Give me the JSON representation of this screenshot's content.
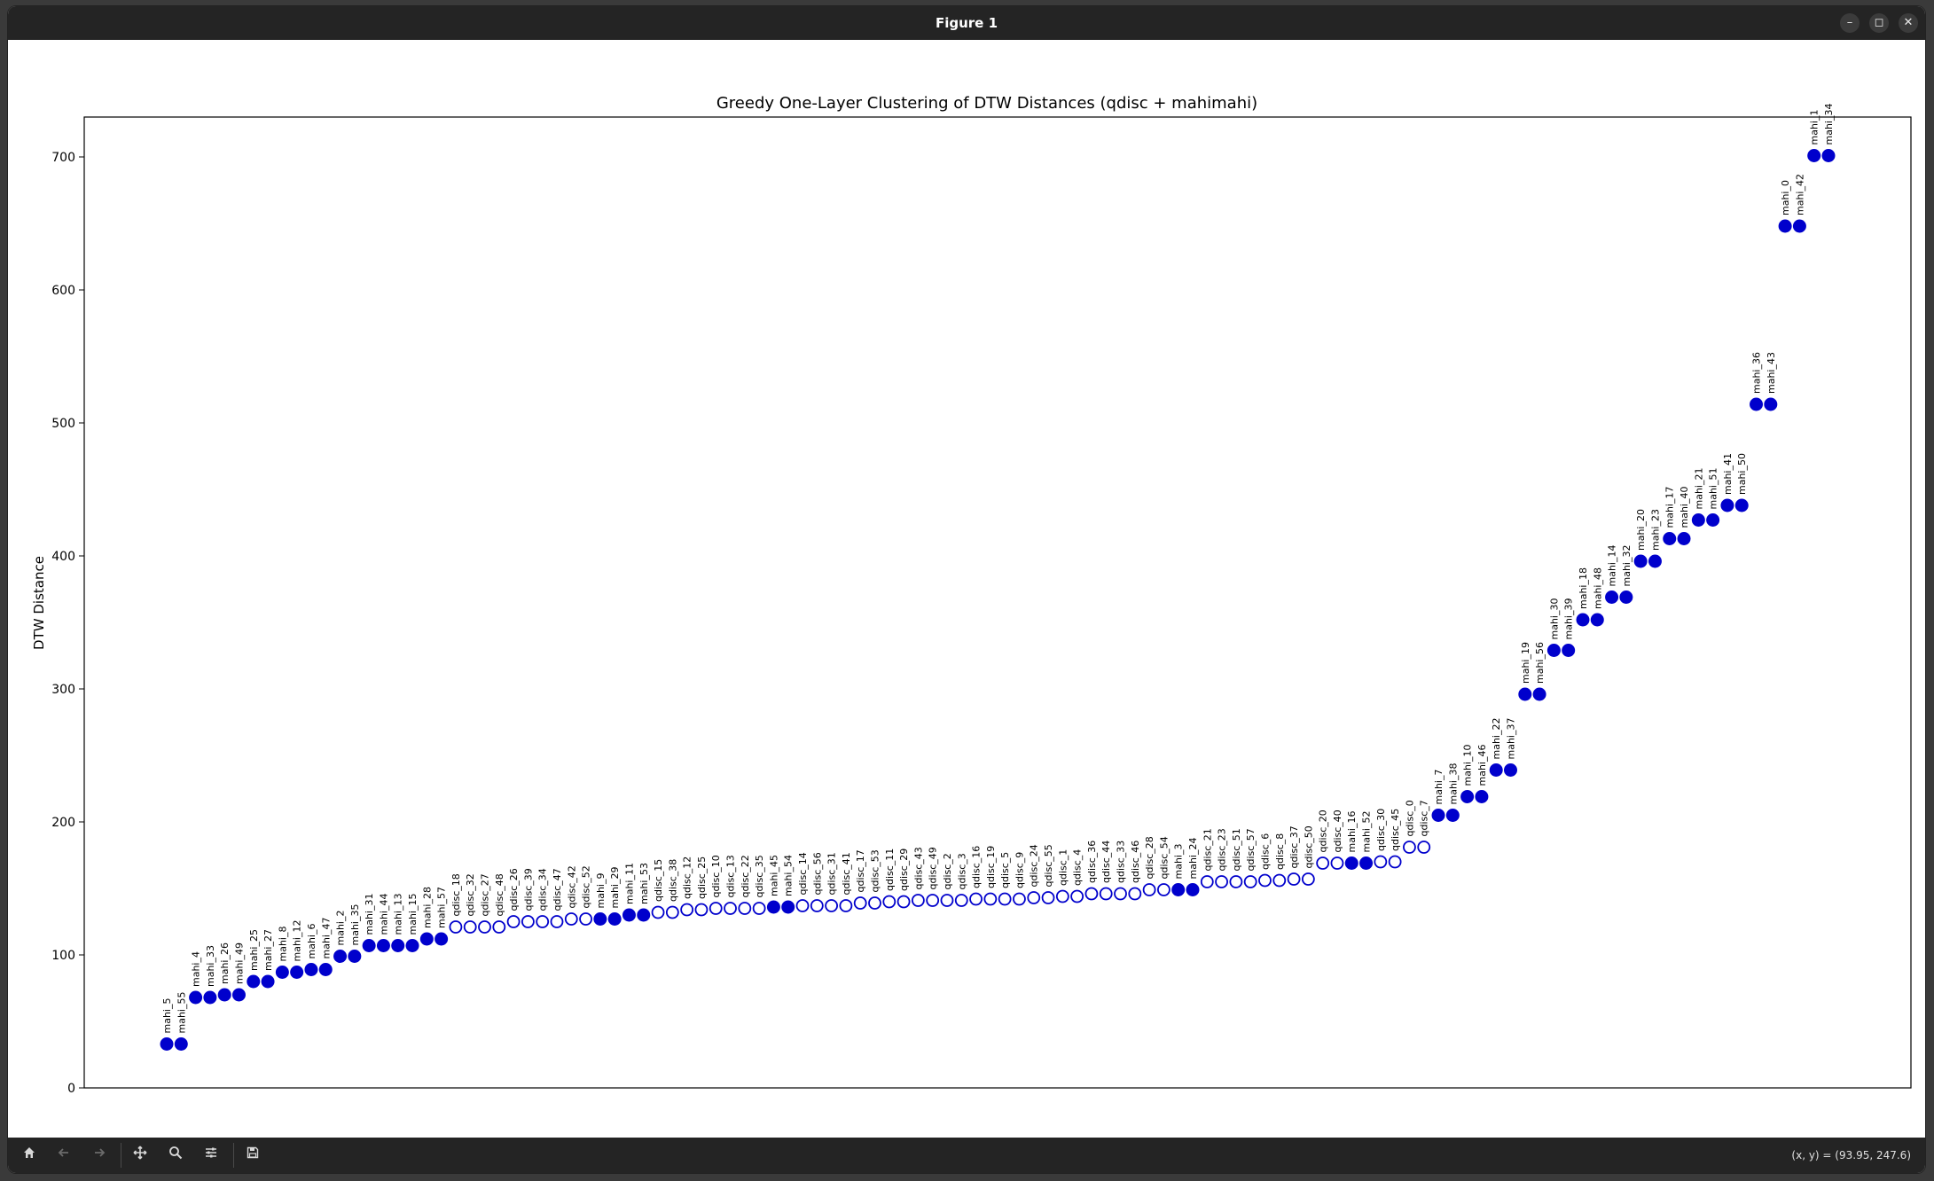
{
  "window": {
    "title": "Figure 1",
    "controls": {
      "minimize": "–",
      "maximize": "◻",
      "close": "✕"
    }
  },
  "toolbar": {
    "buttons": [
      "home",
      "back",
      "forward",
      "pan",
      "zoom",
      "configure",
      "save"
    ],
    "coords": "(x, y) = (93.95, 247.6)"
  },
  "chart_data": {
    "type": "scatter",
    "title": "Greedy One-Layer Clustering of DTW Distances (qdisc + mahimahi)",
    "xlabel": "",
    "ylabel": "DTW Distance",
    "ylim": [
      0,
      730
    ],
    "yticks": [
      0,
      100,
      200,
      300,
      400,
      500,
      600,
      700
    ],
    "xticks_visible": false,
    "grid": false,
    "legend": "none",
    "colors": {
      "mahi": "#0000cc",
      "qdisc_edge": "#0000cc",
      "qdisc_face": "#ffffff"
    },
    "points": [
      {
        "label": "mahi_5",
        "y": 33.0,
        "kind": "mahi"
      },
      {
        "label": "mahi_55",
        "y": 33.0,
        "kind": "mahi"
      },
      {
        "label": "mahi_4",
        "y": 68.0,
        "kind": "mahi"
      },
      {
        "label": "mahi_33",
        "y": 68.0,
        "kind": "mahi"
      },
      {
        "label": "mahi_26",
        "y": 70.0,
        "kind": "mahi"
      },
      {
        "label": "mahi_49",
        "y": 70.0,
        "kind": "mahi"
      },
      {
        "label": "mahi_25",
        "y": 80.0,
        "kind": "mahi"
      },
      {
        "label": "mahi_27",
        "y": 80.0,
        "kind": "mahi"
      },
      {
        "label": "mahi_8",
        "y": 87.0,
        "kind": "mahi"
      },
      {
        "label": "mahi_12",
        "y": 87.0,
        "kind": "mahi"
      },
      {
        "label": "mahi_6",
        "y": 89.0,
        "kind": "mahi"
      },
      {
        "label": "mahi_47",
        "y": 89.0,
        "kind": "mahi"
      },
      {
        "label": "mahi_2",
        "y": 99.0,
        "kind": "mahi"
      },
      {
        "label": "mahi_35",
        "y": 99.0,
        "kind": "mahi"
      },
      {
        "label": "mahi_31",
        "y": 107.0,
        "kind": "mahi"
      },
      {
        "label": "mahi_44",
        "y": 107.0,
        "kind": "mahi"
      },
      {
        "label": "mahi_13",
        "y": 107.0,
        "kind": "mahi"
      },
      {
        "label": "mahi_15",
        "y": 107.0,
        "kind": "mahi"
      },
      {
        "label": "mahi_28",
        "y": 112.0,
        "kind": "mahi"
      },
      {
        "label": "mahi_57",
        "y": 112.0,
        "kind": "mahi"
      },
      {
        "label": "qdisc_18",
        "y": 121.0,
        "kind": "qdisc"
      },
      {
        "label": "qdisc_32",
        "y": 121.0,
        "kind": "qdisc"
      },
      {
        "label": "qdisc_27",
        "y": 121.0,
        "kind": "qdisc"
      },
      {
        "label": "qdisc_48",
        "y": 121.0,
        "kind": "qdisc"
      },
      {
        "label": "qdisc_26",
        "y": 125.0,
        "kind": "qdisc"
      },
      {
        "label": "qdisc_39",
        "y": 125.0,
        "kind": "qdisc"
      },
      {
        "label": "qdisc_34",
        "y": 125.0,
        "kind": "qdisc"
      },
      {
        "label": "qdisc_47",
        "y": 125.0,
        "kind": "qdisc"
      },
      {
        "label": "qdisc_42",
        "y": 127.0,
        "kind": "qdisc"
      },
      {
        "label": "qdisc_52",
        "y": 127.0,
        "kind": "qdisc"
      },
      {
        "label": "mahi_9",
        "y": 127.0,
        "kind": "mahi"
      },
      {
        "label": "mahi_29",
        "y": 127.0,
        "kind": "mahi"
      },
      {
        "label": "mahi_11",
        "y": 130.0,
        "kind": "mahi"
      },
      {
        "label": "mahi_53",
        "y": 130.0,
        "kind": "mahi"
      },
      {
        "label": "qdisc_15",
        "y": 132.0,
        "kind": "qdisc"
      },
      {
        "label": "qdisc_38",
        "y": 132.0,
        "kind": "qdisc"
      },
      {
        "label": "qdisc_12",
        "y": 134.0,
        "kind": "qdisc"
      },
      {
        "label": "qdisc_25",
        "y": 134.0,
        "kind": "qdisc"
      },
      {
        "label": "qdisc_10",
        "y": 135.0,
        "kind": "qdisc"
      },
      {
        "label": "qdisc_13",
        "y": 135.0,
        "kind": "qdisc"
      },
      {
        "label": "qdisc_22",
        "y": 135.0,
        "kind": "qdisc"
      },
      {
        "label": "qdisc_35",
        "y": 135.0,
        "kind": "qdisc"
      },
      {
        "label": "mahi_45",
        "y": 136.0,
        "kind": "mahi"
      },
      {
        "label": "mahi_54",
        "y": 136.0,
        "kind": "mahi"
      },
      {
        "label": "qdisc_14",
        "y": 137.0,
        "kind": "qdisc"
      },
      {
        "label": "qdisc_56",
        "y": 137.0,
        "kind": "qdisc"
      },
      {
        "label": "qdisc_31",
        "y": 137.0,
        "kind": "qdisc"
      },
      {
        "label": "qdisc_41",
        "y": 137.0,
        "kind": "qdisc"
      },
      {
        "label": "qdisc_17",
        "y": 139.0,
        "kind": "qdisc"
      },
      {
        "label": "qdisc_53",
        "y": 139.0,
        "kind": "qdisc"
      },
      {
        "label": "qdisc_11",
        "y": 140.0,
        "kind": "qdisc"
      },
      {
        "label": "qdisc_29",
        "y": 140.0,
        "kind": "qdisc"
      },
      {
        "label": "qdisc_43",
        "y": 141.0,
        "kind": "qdisc"
      },
      {
        "label": "qdisc_49",
        "y": 141.0,
        "kind": "qdisc"
      },
      {
        "label": "qdisc_2",
        "y": 141.0,
        "kind": "qdisc"
      },
      {
        "label": "qdisc_3",
        "y": 141.0,
        "kind": "qdisc"
      },
      {
        "label": "qdisc_16",
        "y": 142.0,
        "kind": "qdisc"
      },
      {
        "label": "qdisc_19",
        "y": 142.0,
        "kind": "qdisc"
      },
      {
        "label": "qdisc_5",
        "y": 142.0,
        "kind": "qdisc"
      },
      {
        "label": "qdisc_9",
        "y": 142.0,
        "kind": "qdisc"
      },
      {
        "label": "qdisc_24",
        "y": 143.0,
        "kind": "qdisc"
      },
      {
        "label": "qdisc_55",
        "y": 143.0,
        "kind": "qdisc"
      },
      {
        "label": "qdisc_1",
        "y": 144.0,
        "kind": "qdisc"
      },
      {
        "label": "qdisc_4",
        "y": 144.0,
        "kind": "qdisc"
      },
      {
        "label": "qdisc_36",
        "y": 146.0,
        "kind": "qdisc"
      },
      {
        "label": "qdisc_44",
        "y": 146.0,
        "kind": "qdisc"
      },
      {
        "label": "qdisc_33",
        "y": 146.0,
        "kind": "qdisc"
      },
      {
        "label": "qdisc_46",
        "y": 146.0,
        "kind": "qdisc"
      },
      {
        "label": "qdisc_28",
        "y": 149.0,
        "kind": "qdisc"
      },
      {
        "label": "qdisc_54",
        "y": 149.0,
        "kind": "qdisc"
      },
      {
        "label": "mahi_3",
        "y": 149.0,
        "kind": "mahi"
      },
      {
        "label": "mahi_24",
        "y": 149.0,
        "kind": "mahi"
      },
      {
        "label": "qdisc_21",
        "y": 155.0,
        "kind": "qdisc"
      },
      {
        "label": "qdisc_23",
        "y": 155.0,
        "kind": "qdisc"
      },
      {
        "label": "qdisc_51",
        "y": 155.0,
        "kind": "qdisc"
      },
      {
        "label": "qdisc_57",
        "y": 155.0,
        "kind": "qdisc"
      },
      {
        "label": "qdisc_6",
        "y": 156.0,
        "kind": "qdisc"
      },
      {
        "label": "qdisc_8",
        "y": 156.0,
        "kind": "qdisc"
      },
      {
        "label": "qdisc_37",
        "y": 157.0,
        "kind": "qdisc"
      },
      {
        "label": "qdisc_50",
        "y": 157.0,
        "kind": "qdisc"
      },
      {
        "label": "qdisc_20",
        "y": 169.0,
        "kind": "qdisc"
      },
      {
        "label": "qdisc_40",
        "y": 169.0,
        "kind": "qdisc"
      },
      {
        "label": "mahi_16",
        "y": 169.0,
        "kind": "mahi"
      },
      {
        "label": "mahi_52",
        "y": 169.0,
        "kind": "mahi"
      },
      {
        "label": "qdisc_30",
        "y": 170.0,
        "kind": "qdisc"
      },
      {
        "label": "qdisc_45",
        "y": 170.0,
        "kind": "qdisc"
      },
      {
        "label": "qdisc_0",
        "y": 181.0,
        "kind": "qdisc"
      },
      {
        "label": "qdisc_7",
        "y": 181.0,
        "kind": "qdisc"
      },
      {
        "label": "mahi_7",
        "y": 205.0,
        "kind": "mahi"
      },
      {
        "label": "mahi_38",
        "y": 205.0,
        "kind": "mahi"
      },
      {
        "label": "mahi_10",
        "y": 219.0,
        "kind": "mahi"
      },
      {
        "label": "mahi_46",
        "y": 219.0,
        "kind": "mahi"
      },
      {
        "label": "mahi_22",
        "y": 239.0,
        "kind": "mahi"
      },
      {
        "label": "mahi_37",
        "y": 239.0,
        "kind": "mahi"
      },
      {
        "label": "mahi_19",
        "y": 296.0,
        "kind": "mahi"
      },
      {
        "label": "mahi_56",
        "y": 296.0,
        "kind": "mahi"
      },
      {
        "label": "mahi_30",
        "y": 329.0,
        "kind": "mahi"
      },
      {
        "label": "mahi_39",
        "y": 329.0,
        "kind": "mahi"
      },
      {
        "label": "mahi_18",
        "y": 352.0,
        "kind": "mahi"
      },
      {
        "label": "mahi_48",
        "y": 352.0,
        "kind": "mahi"
      },
      {
        "label": "mahi_14",
        "y": 369.0,
        "kind": "mahi"
      },
      {
        "label": "mahi_32",
        "y": 369.0,
        "kind": "mahi"
      },
      {
        "label": "mahi_20",
        "y": 396.0,
        "kind": "mahi"
      },
      {
        "label": "mahi_23",
        "y": 396.0,
        "kind": "mahi"
      },
      {
        "label": "mahi_17",
        "y": 413.0,
        "kind": "mahi"
      },
      {
        "label": "mahi_40",
        "y": 413.0,
        "kind": "mahi"
      },
      {
        "label": "mahi_21",
        "y": 427.0,
        "kind": "mahi"
      },
      {
        "label": "mahi_51",
        "y": 427.0,
        "kind": "mahi"
      },
      {
        "label": "mahi_41",
        "y": 438.0,
        "kind": "mahi"
      },
      {
        "label": "mahi_50",
        "y": 438.0,
        "kind": "mahi"
      },
      {
        "label": "mahi_36",
        "y": 514.0,
        "kind": "mahi"
      },
      {
        "label": "mahi_43",
        "y": 514.0,
        "kind": "mahi"
      },
      {
        "label": "mahi_0",
        "y": 648.0,
        "kind": "mahi"
      },
      {
        "label": "mahi_42",
        "y": 648.0,
        "kind": "mahi"
      },
      {
        "label": "mahi_1",
        "y": 701.0,
        "kind": "mahi"
      },
      {
        "label": "mahi_34",
        "y": 701.0,
        "kind": "mahi"
      }
    ]
  }
}
